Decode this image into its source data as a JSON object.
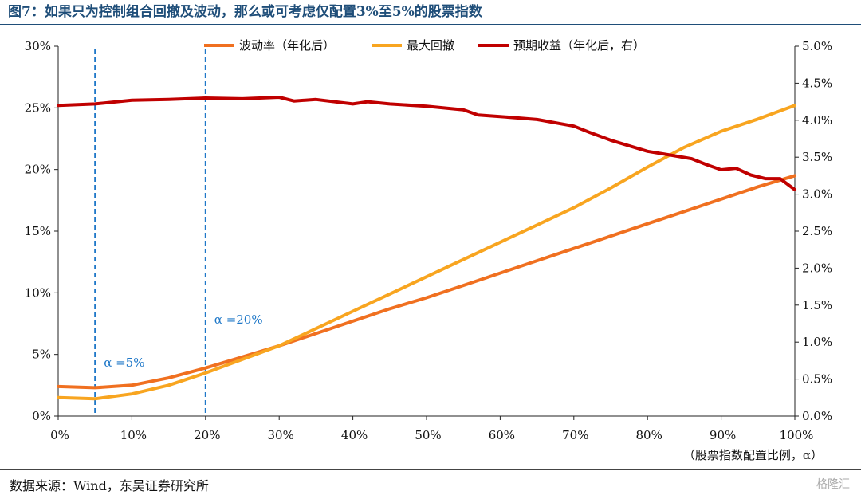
{
  "header": {
    "title": "图7：如果只为控制组合回撤及波动，那么或可考虑仅配置3%至5%的股票指数"
  },
  "footer": {
    "source": "数据来源：Wind，东吴证券研究所",
    "watermark": "格隆汇"
  },
  "chart_data": {
    "type": "line",
    "xlabel": "（股票指数配置比例，α）",
    "x_ticks": [
      "0%",
      "10%",
      "20%",
      "30%",
      "40%",
      "50%",
      "60%",
      "70%",
      "80%",
      "90%",
      "100%"
    ],
    "y_left_ticks": [
      "0%",
      "5%",
      "10%",
      "15%",
      "20%",
      "25%",
      "30%"
    ],
    "y_right_ticks": [
      "0.0%",
      "0.5%",
      "1.0%",
      "1.5%",
      "2.0%",
      "2.5%",
      "3.0%",
      "3.5%",
      "4.0%",
      "4.5%",
      "5.0%"
    ],
    "xlim": [
      0,
      100
    ],
    "ylim_left": [
      0,
      30
    ],
    "ylim_right": [
      0,
      5
    ],
    "grid": false,
    "legend_position": "top",
    "series": [
      {
        "name": "波动率（年化后）",
        "axis": "left",
        "color": "#f07020",
        "x": [
          0,
          5,
          10,
          15,
          20,
          25,
          30,
          35,
          40,
          45,
          50,
          55,
          60,
          65,
          70,
          75,
          80,
          85,
          90,
          95,
          100
        ],
        "values": [
          2.4,
          2.3,
          2.5,
          3.1,
          3.9,
          4.8,
          5.7,
          6.7,
          7.7,
          8.7,
          9.6,
          10.6,
          11.6,
          12.6,
          13.6,
          14.6,
          15.6,
          16.6,
          17.6,
          18.6,
          19.5
        ]
      },
      {
        "name": "最大回撤",
        "axis": "left",
        "color": "#f8a520",
        "x": [
          0,
          5,
          10,
          15,
          20,
          25,
          30,
          35,
          40,
          45,
          50,
          55,
          60,
          65,
          70,
          75,
          80,
          85,
          90,
          95,
          100
        ],
        "values": [
          1.5,
          1.4,
          1.8,
          2.5,
          3.5,
          4.6,
          5.7,
          7.1,
          8.5,
          9.9,
          11.3,
          12.7,
          14.1,
          15.5,
          16.9,
          18.5,
          20.2,
          21.8,
          23.1,
          24.1,
          25.2
        ]
      },
      {
        "name": "预期收益（年化后，右）",
        "axis": "right",
        "color": "#c00000",
        "x": [
          0,
          5,
          10,
          15,
          20,
          25,
          30,
          32,
          35,
          40,
          42,
          45,
          50,
          55,
          57,
          60,
          65,
          70,
          72,
          75,
          80,
          83,
          86,
          88,
          90,
          92,
          94,
          96,
          98,
          100
        ],
        "values": [
          4.2,
          4.22,
          4.27,
          4.28,
          4.3,
          4.29,
          4.31,
          4.26,
          4.28,
          4.22,
          4.25,
          4.22,
          4.19,
          4.14,
          4.07,
          4.05,
          4.01,
          3.92,
          3.84,
          3.73,
          3.58,
          3.53,
          3.48,
          3.4,
          3.33,
          3.35,
          3.26,
          3.21,
          3.21,
          3.06
        ]
      }
    ],
    "annotations": [
      {
        "x": 5,
        "label": "α =5%",
        "color": "#1f78c8",
        "style": "dashed"
      },
      {
        "x": 20,
        "label": "α =20%",
        "color": "#1f78c8",
        "style": "dashed"
      }
    ]
  }
}
